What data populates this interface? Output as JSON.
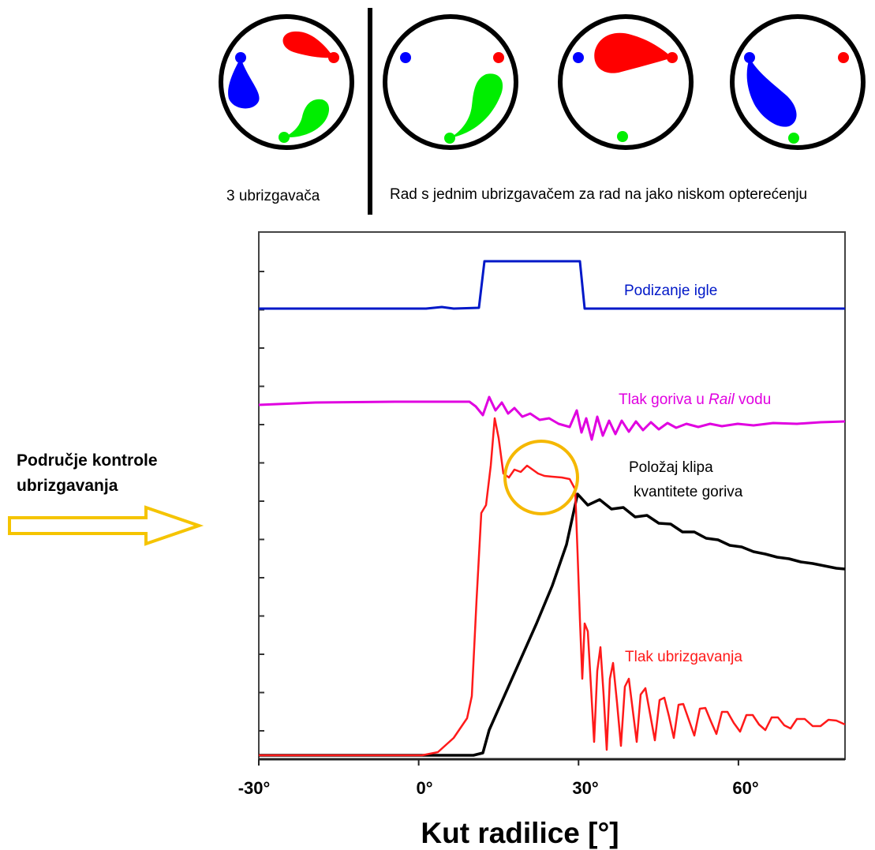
{
  "top_panel": {
    "left_caption": "3 ubrizgavača",
    "right_caption": "Rad s jednim ubrizgavačem za rad na jako niskom opterećenju",
    "colors": {
      "blue": "#0000ff",
      "red": "#ff0000",
      "green": "#00ee00",
      "divider": "#000000"
    }
  },
  "left_note": {
    "line1": "Područje kontrole",
    "line2": "ubrizgavanja",
    "arrow_color": "#f5c400"
  },
  "chart_data": {
    "type": "line",
    "xlabel": "Kut radilice [°]",
    "xlim": [
      -30,
      80
    ],
    "x_ticks": [
      "-30°",
      "0°",
      "30°",
      "60°"
    ],
    "series": [
      {
        "name": "Podizanje igle",
        "color": "#0018c8"
      },
      {
        "name": "Tlak goriva u Rail vodu",
        "name_prefix": "Tlak goriva u ",
        "name_italic": "Rail",
        "name_suffix": " vodu",
        "color": "#e000e0"
      },
      {
        "name": "Položaj klipa kvantitete goriva",
        "name_line1": "Položaj klipa",
        "name_line2": "kvantitete goriva",
        "color": "#000000"
      },
      {
        "name": "Tlak ubrizgavanja",
        "color": "#ff1a1a"
      }
    ],
    "highlight_circle_color": "#f5b800"
  }
}
